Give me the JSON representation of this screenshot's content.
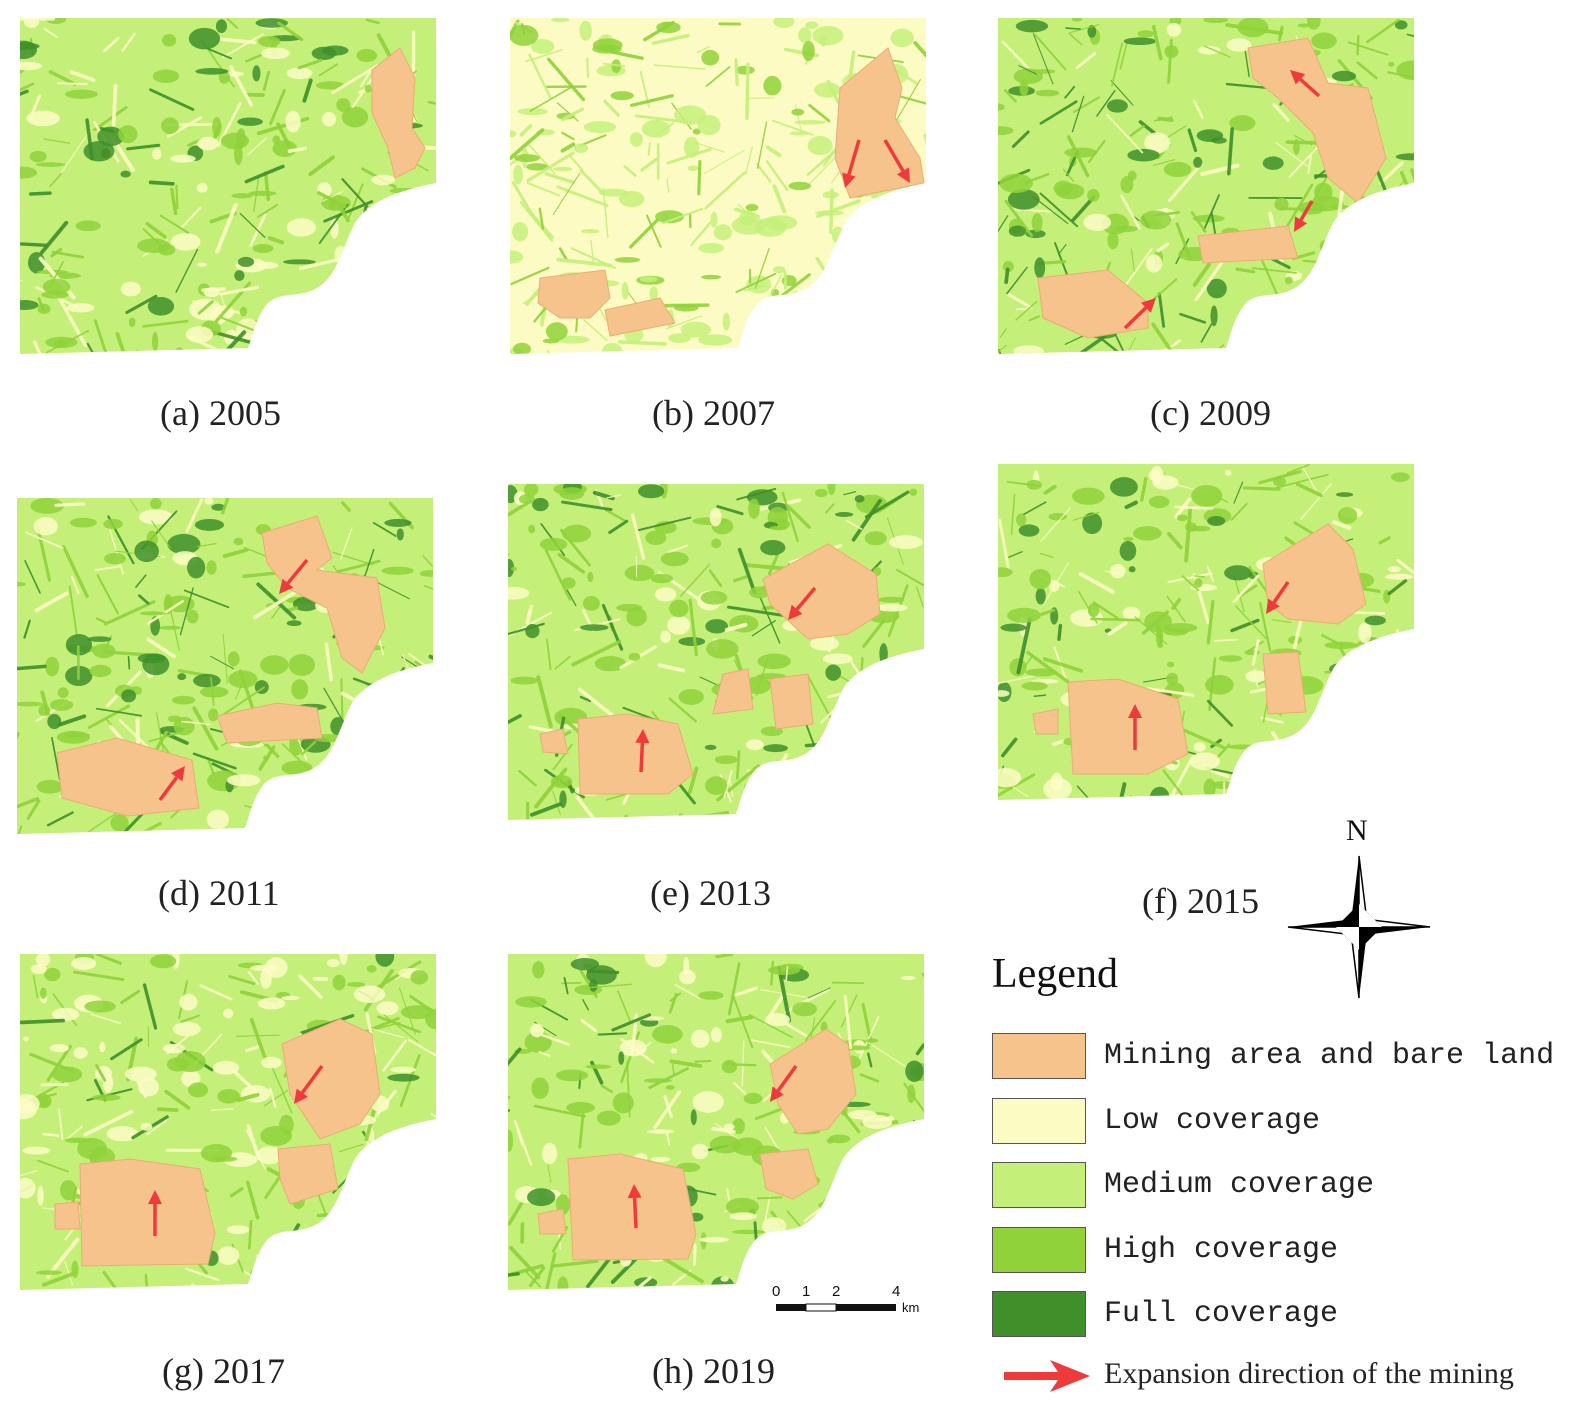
{
  "colors": {
    "mining": "#f6c38d",
    "low": "#fdfbc4",
    "medium": "#c4f07a",
    "high": "#8fd23a",
    "full": "#3f8f2a",
    "arrow": "#ee3a3a"
  },
  "panels": [
    {
      "id": "a",
      "caption": "(a) 2005"
    },
    {
      "id": "b",
      "caption": "(b) 2007"
    },
    {
      "id": "c",
      "caption": "(c) 2009"
    },
    {
      "id": "d",
      "caption": "(d) 2011"
    },
    {
      "id": "e",
      "caption": "(e) 2013"
    },
    {
      "id": "f",
      "caption": "(f) 2015"
    },
    {
      "id": "g",
      "caption": "(g) 2017"
    },
    {
      "id": "h",
      "caption": "(h) 2019"
    }
  ],
  "legend": {
    "title": "Legend",
    "items": [
      {
        "label": "Mining area and bare land",
        "color": "#f6c38d"
      },
      {
        "label": "Low coverage",
        "color": "#fdfbc4"
      },
      {
        "label": "Medium coverage",
        "color": "#c4f07a"
      },
      {
        "label": "High coverage",
        "color": "#8fd23a"
      },
      {
        "label": "Full coverage",
        "color": "#3f8f2a"
      }
    ],
    "arrow_label": "Expansion direction of the mining"
  },
  "north_arrow": {
    "label": "N"
  },
  "scale_bar": {
    "ticks": [
      "0",
      "1",
      "2",
      "4"
    ],
    "unit": "km"
  }
}
